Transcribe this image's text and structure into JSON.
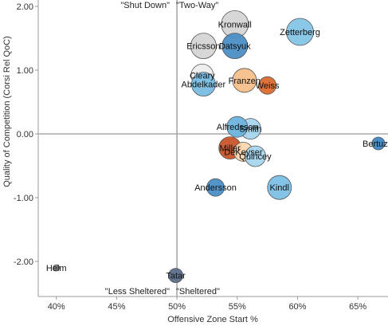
{
  "chart_data": {
    "type": "scatter",
    "title": "",
    "xlabel": "Offensive Zone Start %",
    "ylabel": "Quality of Competition (Corsi Rel QoC)",
    "xlim": [
      0.385,
      0.675
    ],
    "ylim": [
      -2.55,
      2.1
    ],
    "x_ticks": [
      0.4,
      0.45,
      0.5,
      0.55,
      0.6,
      0.65
    ],
    "x_tick_labels": [
      "40%",
      "45%",
      "50%",
      "55%",
      "60%",
      "65%"
    ],
    "y_ticks": [
      2.0,
      1.0,
      0.0,
      -1.0,
      -2.0
    ],
    "y_tick_labels": [
      "2.00",
      "1.00",
      "0.00",
      "-1.00",
      "-2.00"
    ],
    "reference_lines": {
      "x": 0.5,
      "y": 0.0
    },
    "grid": false,
    "quadrant_labels": {
      "top_left": "\"Shut Down\"",
      "top_right": "\"Two-Way\"",
      "bottom_left": "\"Less Sheltered\"",
      "bottom_right": "\"Sheltered\""
    },
    "points": [
      {
        "name": "Kronwall",
        "x": 0.548,
        "y": 1.72,
        "size": 17,
        "color": "#d5d5d5"
      },
      {
        "name": "Zetterberg",
        "x": 0.602,
        "y": 1.6,
        "size": 17,
        "color": "#85c4e6"
      },
      {
        "name": "Ericsson",
        "x": 0.522,
        "y": 1.38,
        "size": 16,
        "color": "#d5d5d5"
      },
      {
        "name": "Datsyuk",
        "x": 0.548,
        "y": 1.38,
        "size": 16,
        "color": "#4a8ec6"
      },
      {
        "name": "Cleary",
        "x": 0.521,
        "y": 0.92,
        "size": 14,
        "color": "#ededed"
      },
      {
        "name": "Abdelkader",
        "x": 0.522,
        "y": 0.78,
        "size": 15,
        "color": "#79bde4"
      },
      {
        "name": "Franzen",
        "x": 0.556,
        "y": 0.84,
        "size": 15,
        "color": "#f6c08a"
      },
      {
        "name": "Weiss",
        "x": 0.575,
        "y": 0.76,
        "size": 11,
        "color": "#db6a30"
      },
      {
        "name": "Smith",
        "x": 0.561,
        "y": 0.08,
        "size": 13,
        "color": "#a8d6ee"
      },
      {
        "name": "Alfredsson",
        "x": 0.55,
        "y": 0.11,
        "size": 13,
        "color": "#6bb4df"
      },
      {
        "name": "Miller",
        "x": 0.544,
        "y": -0.22,
        "size": 14,
        "color": "#c9552a"
      },
      {
        "name": "DeKeyser",
        "x": 0.555,
        "y": -0.28,
        "size": 12,
        "color": "#fad6b0"
      },
      {
        "name": "Quincey",
        "x": 0.565,
        "y": -0.35,
        "size": 13,
        "color": "#a8d6ee"
      },
      {
        "name": "Bertuzzi",
        "x": 0.667,
        "y": -0.15,
        "size": 8,
        "color": "#3f87c6"
      },
      {
        "name": "Andersson",
        "x": 0.532,
        "y": -0.84,
        "size": 11,
        "color": "#4a8ec6"
      },
      {
        "name": "Kindl",
        "x": 0.585,
        "y": -0.84,
        "size": 15,
        "color": "#7cc0e6"
      },
      {
        "name": "Helm",
        "x": 0.4,
        "y": -2.1,
        "size": 4,
        "color": "#888888"
      },
      {
        "name": "Tatar",
        "x": 0.499,
        "y": -2.22,
        "size": 9,
        "color": "#5b6f8a"
      }
    ]
  }
}
